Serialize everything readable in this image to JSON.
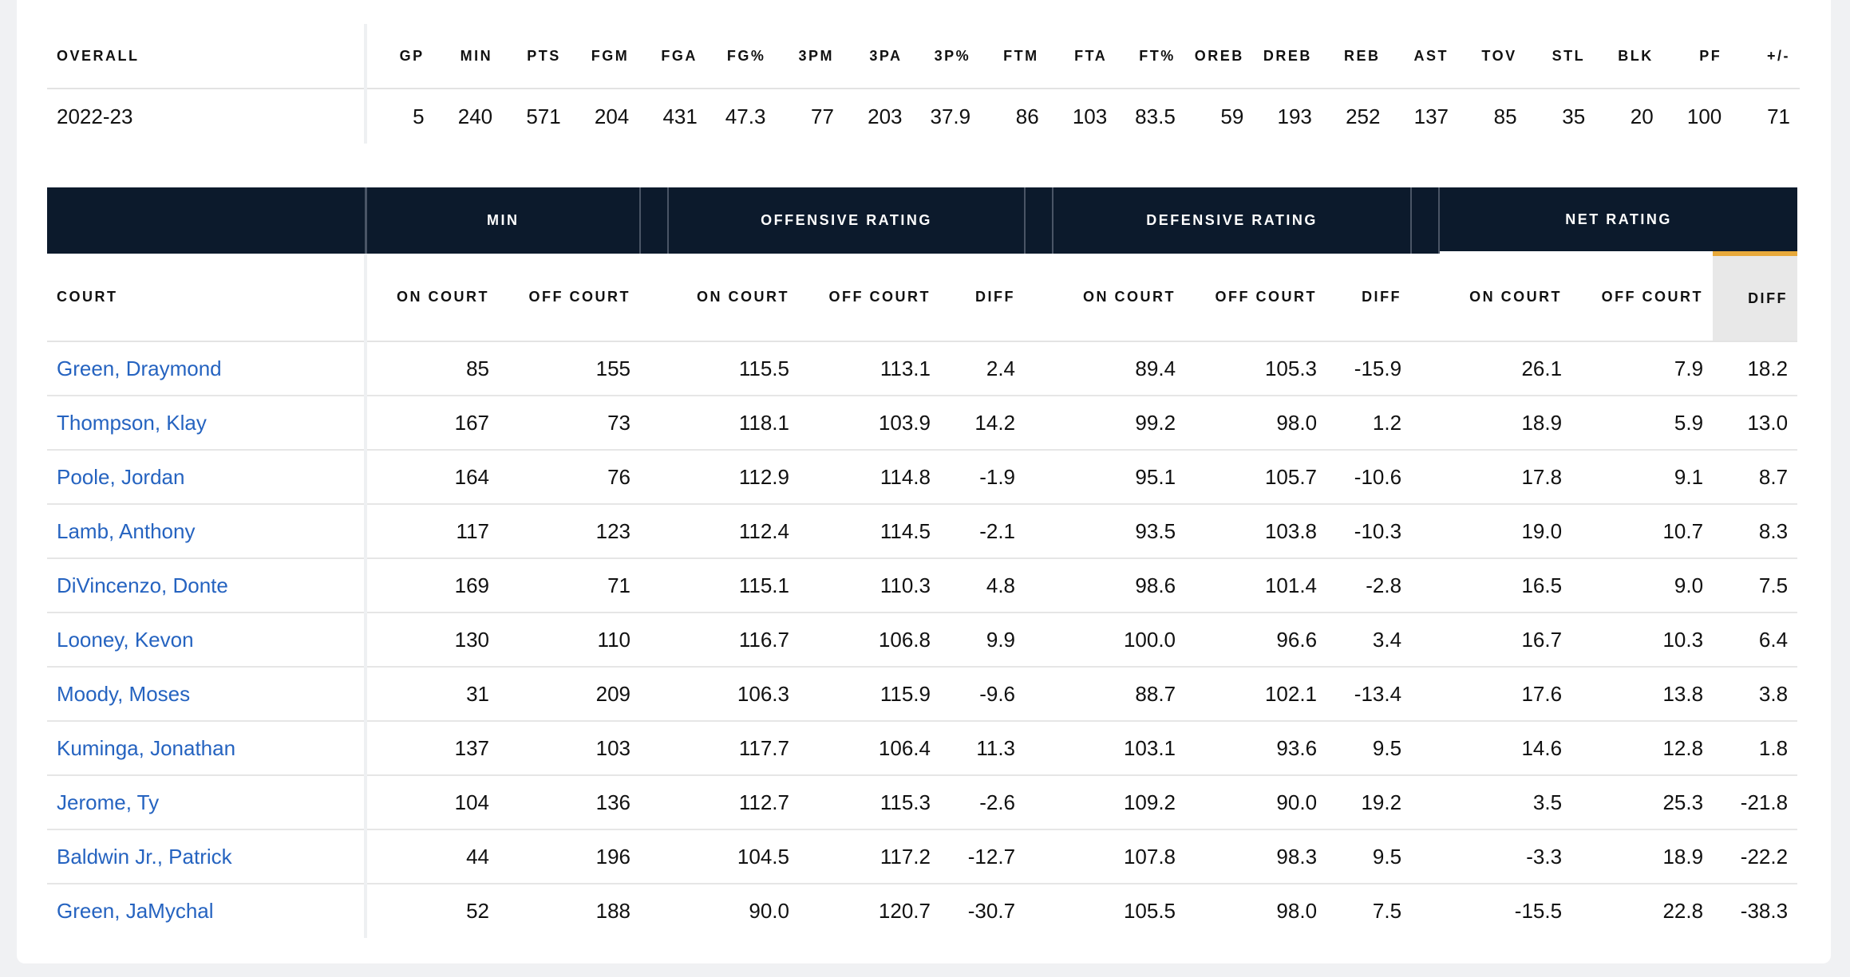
{
  "overall": {
    "columns": [
      "OVERALL",
      "GP",
      "MIN",
      "PTS",
      "FGM",
      "FGA",
      "FG%",
      "3PM",
      "3PA",
      "3P%",
      "FTM",
      "FTA",
      "FT%",
      "OREB",
      "DREB",
      "REB",
      "AST",
      "TOV",
      "STL",
      "BLK",
      "PF",
      "+/-"
    ],
    "rows": [
      [
        "2022-23",
        "5",
        "240",
        "571",
        "204",
        "431",
        "47.3",
        "77",
        "203",
        "37.9",
        "86",
        "103",
        "83.5",
        "59",
        "193",
        "252",
        "137",
        "85",
        "35",
        "20",
        "100",
        "71"
      ]
    ]
  },
  "court": {
    "groups": [
      "MIN",
      "OFFENSIVE RATING",
      "DEFENSIVE RATING",
      "NET RATING"
    ],
    "columns": [
      "COURT",
      "ON COURT",
      "OFF COURT",
      "ON COURT",
      "OFF COURT",
      "DIFF",
      "ON COURT",
      "OFF COURT",
      "DIFF",
      "ON COURT",
      "OFF COURT",
      "DIFF"
    ],
    "rows": [
      [
        "Green, Draymond",
        "85",
        "155",
        "115.5",
        "113.1",
        "2.4",
        "89.4",
        "105.3",
        "-15.9",
        "26.1",
        "7.9",
        "18.2"
      ],
      [
        "Thompson, Klay",
        "167",
        "73",
        "118.1",
        "103.9",
        "14.2",
        "99.2",
        "98.0",
        "1.2",
        "18.9",
        "5.9",
        "13.0"
      ],
      [
        "Poole, Jordan",
        "164",
        "76",
        "112.9",
        "114.8",
        "-1.9",
        "95.1",
        "105.7",
        "-10.6",
        "17.8",
        "9.1",
        "8.7"
      ],
      [
        "Lamb, Anthony",
        "117",
        "123",
        "112.4",
        "114.5",
        "-2.1",
        "93.5",
        "103.8",
        "-10.3",
        "19.0",
        "10.7",
        "8.3"
      ],
      [
        "DiVincenzo, Donte",
        "169",
        "71",
        "115.1",
        "110.3",
        "4.8",
        "98.6",
        "101.4",
        "-2.8",
        "16.5",
        "9.0",
        "7.5"
      ],
      [
        "Looney, Kevon",
        "130",
        "110",
        "116.7",
        "106.8",
        "9.9",
        "100.0",
        "96.6",
        "3.4",
        "16.7",
        "10.3",
        "6.4"
      ],
      [
        "Moody, Moses",
        "31",
        "209",
        "106.3",
        "115.9",
        "-9.6",
        "88.7",
        "102.1",
        "-13.4",
        "17.6",
        "13.8",
        "3.8"
      ],
      [
        "Kuminga, Jonathan",
        "137",
        "103",
        "117.7",
        "106.4",
        "11.3",
        "103.1",
        "93.6",
        "9.5",
        "14.6",
        "12.8",
        "1.8"
      ],
      [
        "Jerome, Ty",
        "104",
        "136",
        "112.7",
        "115.3",
        "-2.6",
        "109.2",
        "90.0",
        "19.2",
        "3.5",
        "25.3",
        "-21.8"
      ],
      [
        "Baldwin Jr., Patrick",
        "44",
        "196",
        "104.5",
        "117.2",
        "-12.7",
        "107.8",
        "98.3",
        "9.5",
        "-3.3",
        "18.9",
        "-22.2"
      ],
      [
        "Green, JaMychal",
        "52",
        "188",
        "90.0",
        "120.7",
        "-30.7",
        "105.5",
        "98.0",
        "7.5",
        "-15.5",
        "22.8",
        "-38.3"
      ]
    ]
  }
}
